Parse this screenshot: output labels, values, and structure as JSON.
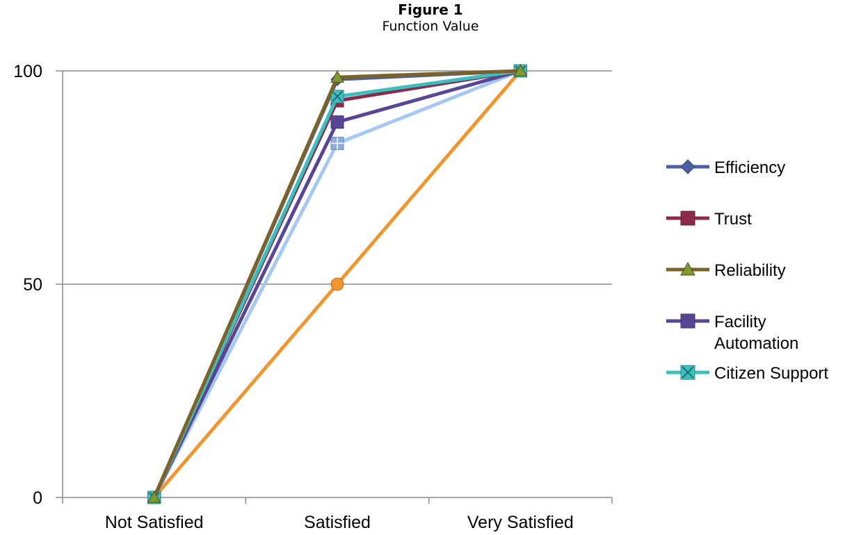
{
  "figure": {
    "title": "Figure 1",
    "subtitle": "Function Value"
  },
  "chart_data": {
    "type": "line",
    "title": "Function Value",
    "xlabel": "",
    "ylabel": "",
    "categories": [
      "Not Satisfied",
      "Satisfied",
      "Very Satisfied"
    ],
    "ylim": [
      0,
      100
    ],
    "yticks": [
      "0",
      "50",
      "100"
    ],
    "grid": true,
    "legend_position": "right",
    "series": [
      {
        "name": "Efficiency",
        "values": [
          0,
          98,
          100
        ],
        "color": "#4F5FA3",
        "marker": "diamond",
        "legend": [
          "Efficiency"
        ]
      },
      {
        "name": "Trust",
        "values": [
          0,
          93,
          100
        ],
        "color": "#8C2A4A",
        "marker": "square",
        "legend": [
          "Trust"
        ]
      },
      {
        "name": "Reliability",
        "values": [
          0,
          98.5,
          100
        ],
        "color": "#7B6327",
        "marker": "triangle",
        "legend": [
          "Reliability"
        ]
      },
      {
        "name": "Facility Automation",
        "values": [
          0,
          88,
          100
        ],
        "color": "#574596",
        "marker": "square",
        "legend": [
          "Facility",
          "Automation"
        ]
      },
      {
        "name": "Citizen Support",
        "values": [
          0,
          94,
          100
        ],
        "color": "#3DBFC0",
        "marker": "xsquare",
        "legend": [
          "Citizen Support"
        ]
      },
      {
        "name": "",
        "values": [
          0,
          83,
          100
        ],
        "color": "#A4C8F2",
        "marker": "plussquare",
        "legend": []
      },
      {
        "name": "",
        "values": [
          0,
          50,
          100
        ],
        "color": "#F0962F",
        "marker": "circle",
        "legend": []
      }
    ]
  }
}
